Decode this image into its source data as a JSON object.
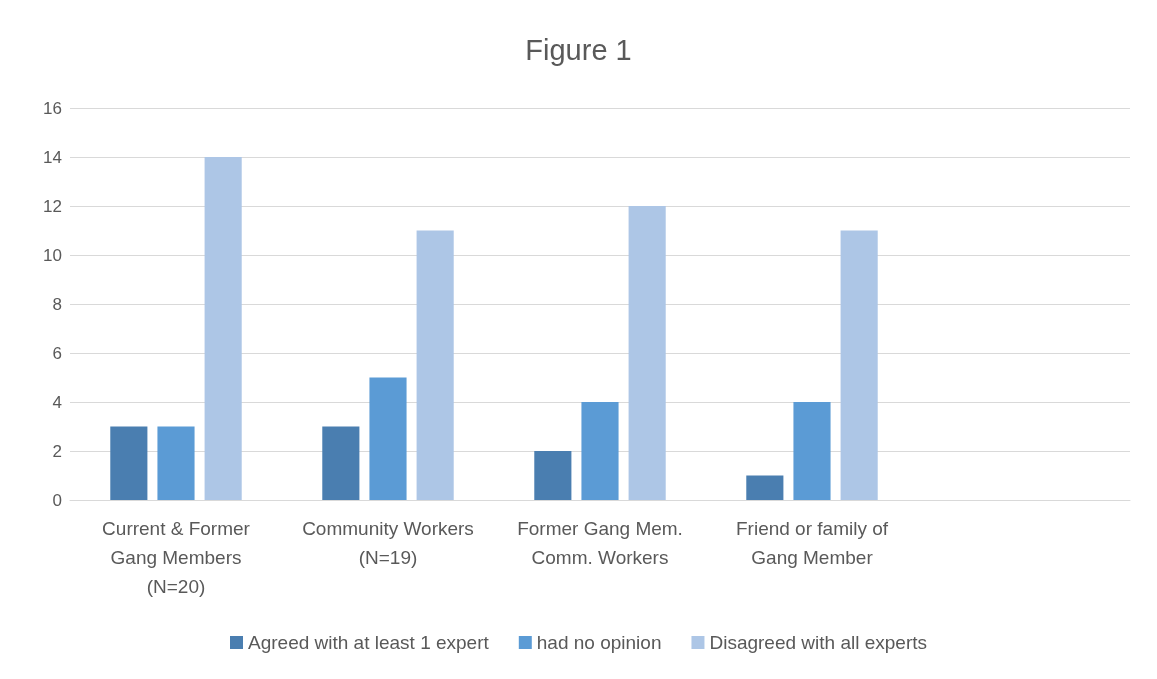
{
  "chart_data": {
    "type": "bar",
    "title": "Figure 1",
    "categories": [
      "Current & Former\nGang Members\n(N=20)",
      "Community Workers\n(N=19)",
      "Former Gang Mem.\nComm. Workers",
      "Friend or family of\nGang Member",
      null
    ],
    "series": [
      {
        "name": "Agreed with at least 1 expert",
        "color": "#4a7eb0",
        "values": [
          3,
          3,
          2,
          1,
          null
        ]
      },
      {
        "name": "had no opinion",
        "color": "#5b9bd5",
        "values": [
          3,
          5,
          4,
          4,
          null
        ]
      },
      {
        "name": "Disagreed with all experts",
        "color": "#adc6e6",
        "values": [
          14,
          11,
          12,
          11,
          null
        ]
      }
    ],
    "ylim": [
      0,
      16
    ],
    "yticks": [
      0,
      2,
      4,
      6,
      8,
      10,
      12,
      14,
      16
    ],
    "grid": "y",
    "legend": "bottom"
  }
}
